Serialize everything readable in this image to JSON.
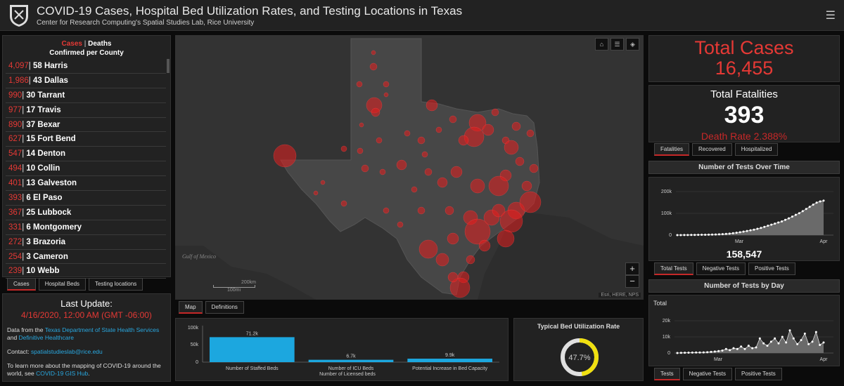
{
  "header": {
    "title": "COVID-19 Cases, Hospital Bed Utilization Rates, and Testing Locations in Texas",
    "subtitle": "Center for Research Computing's Spatial Studies Lab, Rice University"
  },
  "cases_panel": {
    "cases_label": "Cases",
    "sep": "|",
    "deaths_label": "Deaths",
    "subtitle": "Confirmed per County",
    "rows": [
      {
        "cases": "4,097",
        "deaths": "58",
        "county": "Harris"
      },
      {
        "cases": "1,986",
        "deaths": "43",
        "county": "Dallas"
      },
      {
        "cases": "990",
        "deaths": "30",
        "county": "Tarrant"
      },
      {
        "cases": "977",
        "deaths": "17",
        "county": "Travis"
      },
      {
        "cases": "890",
        "deaths": "37",
        "county": "Bexar"
      },
      {
        "cases": "627",
        "deaths": "15",
        "county": "Fort Bend"
      },
      {
        "cases": "547",
        "deaths": "14",
        "county": "Denton"
      },
      {
        "cases": "494",
        "deaths": "10",
        "county": "Collin"
      },
      {
        "cases": "401",
        "deaths": "13",
        "county": "Galveston"
      },
      {
        "cases": "393",
        "deaths": "6",
        "county": "El Paso"
      },
      {
        "cases": "367",
        "deaths": "25",
        "county": "Lubbock"
      },
      {
        "cases": "331",
        "deaths": "6",
        "county": "Montgomery"
      },
      {
        "cases": "272",
        "deaths": "3",
        "county": "Brazoria"
      },
      {
        "cases": "254",
        "deaths": "3",
        "county": "Cameron"
      },
      {
        "cases": "239",
        "deaths": "10",
        "county": "Webb"
      }
    ],
    "tabs": [
      "Cases",
      "Hospital Beds",
      "Testing locations"
    ]
  },
  "update_panel": {
    "title": "Last Update:",
    "date": "4/16/2020, 12:00 AM (GMT -06:00)",
    "data_prefix": "Data from the ",
    "data_link1": "Texas Department of State Health Services",
    "data_and": " and ",
    "data_link2": "Definitive Healthcare",
    "contact_prefix": "Contact: ",
    "contact_email": "spatialstudieslab@rice.edu",
    "learn_prefix": "To learn more about  the mapping of COVID-19 around the world, see ",
    "learn_link": "COVID-19 GIS Hub",
    "learn_suffix": "."
  },
  "map": {
    "tabs": [
      "Map",
      "Definitions"
    ],
    "attribution": "Esri, HERE, NPS",
    "scale_top": "200km",
    "scale_bottom": "100mi",
    "gulf_label": "Gulf of Mexico",
    "zoom_in": "+",
    "zoom_out": "−",
    "tool_icons": [
      "home-icon",
      "list-icon",
      "layers-icon"
    ]
  },
  "beds_chart": {
    "xlabel": "Number of Licensed beds",
    "y_ticks": [
      "100k",
      "50k",
      "0"
    ],
    "categories": [
      "Number of Staffed Beds",
      "Number of ICU Beds",
      "Potential Increase in Bed Capacity"
    ],
    "value_labels": [
      "71.2k",
      "6.7k",
      "9.9k"
    ],
    "values": [
      71200,
      6700,
      9900
    ],
    "ymax": 100000,
    "color": "#1ca7df"
  },
  "utilization": {
    "title": "Typical Bed Utilization Rate",
    "value_label": "47.7%",
    "value": 0.477,
    "color": "#f0e010"
  },
  "totals": {
    "cases_label": "Total Cases",
    "cases_value": "16,455",
    "fatalities_label": "Total Fatalities",
    "fatalities_value": "393",
    "death_rate": "Death Rate 2.388%",
    "tabs": [
      "Fatalities",
      "Recovered",
      "Hospitalized"
    ]
  },
  "tests_over_time": {
    "title": "Number of Tests Over Time",
    "total_value": "158,547",
    "y_ticks": [
      "200k",
      "100k",
      "0"
    ],
    "x_ticks": [
      "Mar",
      "Apr"
    ],
    "tabs": [
      "Total Tests",
      "Negative Tests",
      "Positive Tests"
    ]
  },
  "tests_by_day": {
    "title": "Number of Tests by Day",
    "label": "Total",
    "y_ticks": [
      "20k",
      "10k",
      "0"
    ],
    "x_ticks": [
      "Mar",
      "Apr"
    ],
    "tabs": [
      "Tests",
      "Negative Tests",
      "Positive Tests"
    ]
  },
  "chart_data": [
    {
      "type": "bar",
      "categories": [
        "Number of Staffed Beds",
        "Number of ICU Beds",
        "Potential Increase in Bed Capacity"
      ],
      "values": [
        71200,
        6700,
        9900
      ],
      "xlabel": "Number of Licensed beds",
      "ylim": [
        0,
        100000
      ]
    },
    {
      "type": "area",
      "title": "Number of Tests Over Time",
      "ylim": [
        0,
        200000
      ],
      "values": [
        0,
        200,
        400,
        600,
        800,
        1000,
        1200,
        1500,
        1800,
        2100,
        2500,
        3000,
        3600,
        4500,
        5500,
        7000,
        9000,
        11000,
        13500,
        16000,
        19000,
        22000,
        25000,
        29000,
        33000,
        38000,
        43000,
        48000,
        53000,
        58000,
        63000,
        70000,
        77000,
        85000,
        93000,
        101000,
        110000,
        120000,
        130000,
        140000,
        149000,
        155000,
        158547
      ]
    },
    {
      "type": "area",
      "title": "Number of Tests by Day",
      "ylim": [
        0,
        20000
      ],
      "values": [
        0,
        100,
        150,
        200,
        250,
        300,
        350,
        400,
        500,
        700,
        900,
        1200,
        1500,
        2500,
        1800,
        3000,
        2500,
        4000,
        2500,
        4500,
        3000,
        3500,
        9000,
        6000,
        4500,
        7000,
        9000,
        6000,
        10000,
        6500,
        14000,
        9000,
        5500,
        8000,
        12000,
        5500,
        7000,
        13000,
        5000,
        6500
      ]
    }
  ]
}
